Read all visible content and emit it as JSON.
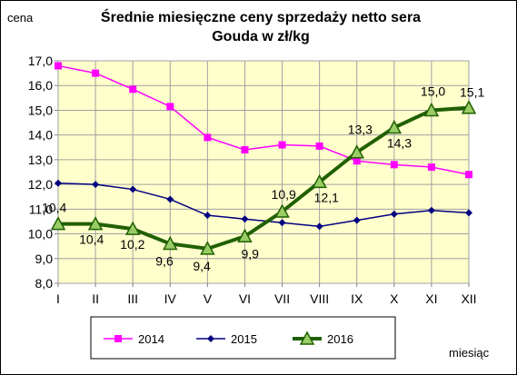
{
  "chart_data": {
    "type": "line",
    "title_lines": [
      "Średnie miesięczne ceny sprzedaży netto sera",
      "Gouda w zł/kg"
    ],
    "ylabel": "cena",
    "xlabel": "miesiąc",
    "categories": [
      "I",
      "II",
      "III",
      "IV",
      "V",
      "VI",
      "VII",
      "VIII",
      "IX",
      "X",
      "XI",
      "XII"
    ],
    "ylim": [
      8.0,
      17.0
    ],
    "yticks": [
      "8,0",
      "9,0",
      "10,0",
      "11,0",
      "12,0",
      "13,0",
      "14,0",
      "15,0",
      "16,0",
      "17,0"
    ],
    "grid": true,
    "legend_position": "bottom",
    "plot_background": "#ffffcc",
    "series": [
      {
        "name": "2014",
        "color": "#ff00ff",
        "marker": "square",
        "values": [
          16.8,
          16.5,
          15.85,
          15.15,
          13.9,
          13.4,
          13.6,
          13.55,
          12.95,
          12.8,
          12.7,
          12.4
        ]
      },
      {
        "name": "2015",
        "color": "#000080",
        "marker": "diamond",
        "values": [
          12.05,
          12.0,
          11.8,
          11.4,
          10.75,
          10.6,
          10.45,
          10.3,
          10.55,
          10.8,
          10.95,
          10.85
        ]
      },
      {
        "name": "2016",
        "color": "#206000",
        "marker": "triangle",
        "values": [
          10.4,
          10.4,
          10.2,
          9.6,
          9.4,
          9.9,
          10.9,
          12.1,
          13.3,
          14.3,
          15.0,
          15.1
        ],
        "data_labels": [
          "10,4",
          "10,4",
          "10,2",
          "9,6",
          "9,4",
          "9,9",
          "10,9",
          "12,1",
          "13,3",
          "14,3",
          "15,0",
          "15,1"
        ]
      }
    ]
  }
}
